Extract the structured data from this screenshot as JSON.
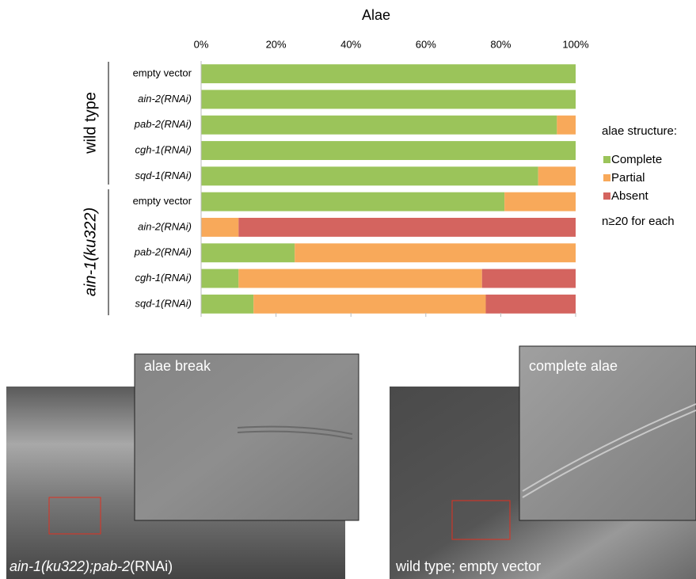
{
  "chart_data": {
    "type": "stacked-barh",
    "title": "Alae",
    "groups": [
      "wild type",
      "ain-1(ku322)"
    ],
    "categories": [
      "empty vector",
      "ain-2(RNAi)",
      "pab-2(RNAi)",
      "cgh-1(RNAi)",
      "sqd-1(RNAi)",
      "empty vector",
      "ain-2(RNAi)",
      "pab-2(RNAi)",
      "cgh-1(RNAi)",
      "sqd-1(RNAi)"
    ],
    "series": [
      {
        "name": "Complete",
        "color": "#9bc45a",
        "values": [
          100,
          100,
          95,
          100,
          90,
          81,
          0,
          25,
          10,
          14
        ]
      },
      {
        "name": "Partial",
        "color": "#f8a95a",
        "values": [
          0,
          0,
          5,
          0,
          10,
          19,
          10,
          75,
          65,
          62
        ]
      },
      {
        "name": "Absent",
        "color": "#d4645f",
        "values": [
          0,
          0,
          0,
          0,
          0,
          0,
          90,
          0,
          25,
          24
        ]
      }
    ],
    "xlim": [
      0,
      100
    ],
    "xticks": [
      {
        "value": 0,
        "label": "0%"
      },
      {
        "value": 20,
        "label": "20%"
      },
      {
        "value": 40,
        "label": "40%"
      },
      {
        "value": 60,
        "label": "60%"
      },
      {
        "value": 80,
        "label": "80%"
      },
      {
        "value": 100,
        "label": "100%"
      }
    ],
    "legend_title": "alae structure:",
    "note": "n≥20 for each"
  },
  "images": [
    {
      "inset_label": "alae break",
      "caption": [
        "ain-1(ku322);pab-2",
        "(RNAi)"
      ]
    },
    {
      "inset_label": "complete alae",
      "caption": [
        "wild type; empty vector"
      ]
    }
  ]
}
